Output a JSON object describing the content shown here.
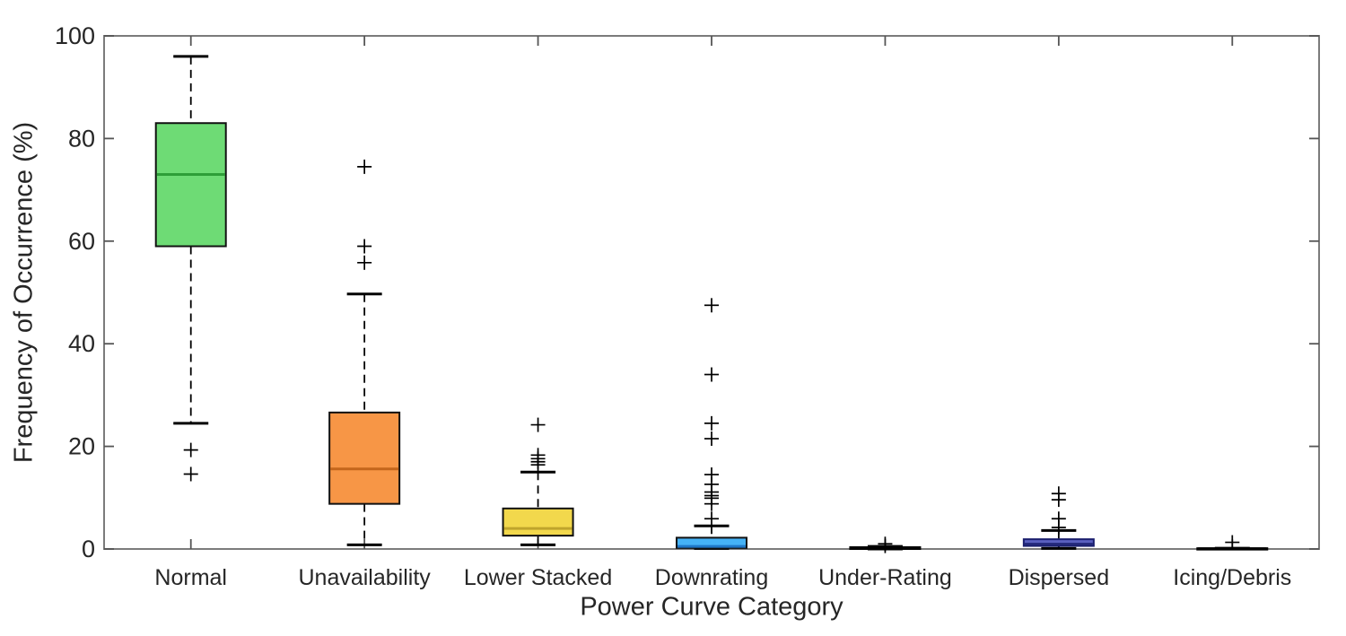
{
  "figure": {
    "background": "#ffffff"
  },
  "style": {
    "axis_color": "#7b7b7b",
    "tick_color": "#555555",
    "text_color": "#262626",
    "whisker_color": "#000000",
    "outlier_color": "#000000"
  },
  "chart_data": {
    "type": "box",
    "title": "",
    "xlabel": "Power Curve Category",
    "ylabel": "Frequency of Occurrence (%)",
    "ylim": [
      0,
      100
    ],
    "yticks": [
      0,
      20,
      40,
      60,
      80,
      100
    ],
    "grid": false,
    "legend": null,
    "categories": [
      "Normal",
      "Unavailability",
      "Lower Stacked",
      "Downrating",
      "Under-Rating",
      "Dispersed",
      "Icing/Debris"
    ],
    "boxes": [
      {
        "label": "Normal",
        "fill": "#6EDB75",
        "edge": "#111111",
        "median_color": "#2E9E38",
        "q1": 59,
        "median": 73,
        "q3": 83,
        "whisker_low": 24.5,
        "whisker_high": 96,
        "outliers": [
          19.3,
          14.6
        ]
      },
      {
        "label": "Unavailability",
        "fill": "#F79646",
        "edge": "#111111",
        "median_color": "#C4661B",
        "q1": 8.8,
        "median": 15.6,
        "q3": 26.6,
        "whisker_low": 0.8,
        "whisker_high": 49.7,
        "outliers": [
          74.5,
          59.0,
          55.8
        ]
      },
      {
        "label": "Lower Stacked",
        "fill": "#F2D84C",
        "edge": "#111111",
        "median_color": "#BFA42C",
        "q1": 2.6,
        "median": 4.0,
        "q3": 7.9,
        "whisker_low": 0.8,
        "whisker_high": 15.0,
        "outliers": [
          24.2,
          18.3,
          17.6,
          17.0,
          16.4
        ]
      },
      {
        "label": "Downrating",
        "fill": "#45B2F6",
        "edge": "#111111",
        "median_color": "#1F78C8",
        "q1": 0.2,
        "median": 0.5,
        "q3": 2.2,
        "whisker_low": 0.1,
        "whisker_high": 4.5,
        "outliers": [
          47.5,
          34.0,
          24.5,
          21.5,
          14.5,
          12.6,
          11.1,
          10.4,
          9.9,
          8.8,
          5.9
        ]
      },
      {
        "label": "Under-Rating",
        "fill": "#111111",
        "edge": "#000000",
        "median_color": "#000000",
        "q1": 0.0,
        "median": 0.15,
        "q3": 0.35,
        "whisker_low": 0.0,
        "whisker_high": 0.5,
        "outliers": [
          1.0,
          0.6
        ]
      },
      {
        "label": "Dispersed",
        "fill": "#5A60C0",
        "edge": "#1A1E6E",
        "median_color": "#23287A",
        "q1": 0.6,
        "median": 0.95,
        "q3": 1.9,
        "whisker_low": 0.1,
        "whisker_high": 3.6,
        "outliers": [
          10.8,
          9.6,
          5.9,
          4.2
        ]
      },
      {
        "label": "Icing/Debris",
        "fill": "#111111",
        "edge": "#000000",
        "median_color": "#000000",
        "q1": 0.0,
        "median": 0.05,
        "q3": 0.15,
        "whisker_low": 0.0,
        "whisker_high": 0.15,
        "outliers": [
          1.3
        ]
      }
    ]
  }
}
